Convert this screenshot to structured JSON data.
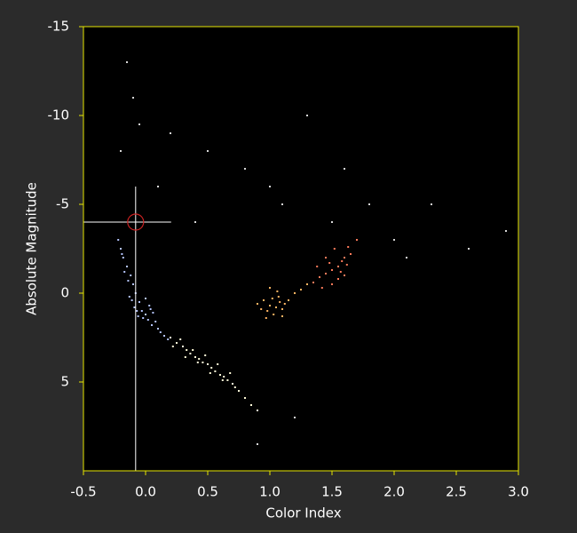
{
  "chart_data": {
    "type": "scatter",
    "x_label": "Color Index",
    "y_label": "Absolute Magnitude",
    "xlim": [
      -0.5,
      3.0
    ],
    "ylim": [
      10,
      -15
    ],
    "xticks": [
      -0.5,
      {
        "value": 0,
        "label": "0.0"
      },
      0.5,
      {
        "value": 1,
        "label": "1.0"
      },
      1.5,
      {
        "value": 2,
        "label": "2.0"
      },
      2.5,
      {
        "value": 3,
        "label": "3.0"
      }
    ],
    "yticks": [
      -15,
      -10,
      -5,
      0,
      5
    ],
    "frame_color": "#e6e600",
    "crosshair": {
      "x": -0.08,
      "y": -4,
      "color": "#ffffff",
      "marker_color": "#cc2222"
    },
    "series": [
      {
        "color": "#b4c4ff",
        "x": [
          -0.22,
          -0.2,
          -0.18,
          -0.15,
          -0.12,
          -0.1,
          -0.08,
          -0.05,
          -0.03,
          0.0,
          0.02,
          0.05,
          -0.17,
          -0.13,
          -0.09,
          -0.06,
          0.0,
          0.04,
          0.08,
          0.1,
          -0.19,
          -0.14,
          -0.11,
          -0.07,
          -0.02,
          0.03,
          0.06,
          0.12,
          0.15,
          0.18
        ],
        "values": [
          -3,
          -2.5,
          -2,
          -1.5,
          -1,
          -0.5,
          0,
          0.5,
          1,
          1.2,
          1.5,
          1.8,
          -1.2,
          0.2,
          0.8,
          1.3,
          0.3,
          0.9,
          1.6,
          2.0,
          -2.2,
          -0.7,
          0.4,
          1.0,
          1.4,
          0.7,
          1.1,
          2.2,
          2.4,
          2.6
        ]
      },
      {
        "color": "#fffbd8",
        "x": [
          0.2,
          0.25,
          0.3,
          0.33,
          0.36,
          0.4,
          0.43,
          0.46,
          0.5,
          0.53,
          0.56,
          0.6,
          0.63,
          0.66,
          0.7,
          0.75,
          0.8,
          0.85,
          0.28,
          0.38,
          0.48,
          0.58,
          0.68,
          0.22,
          0.32,
          0.42,
          0.52,
          0.62,
          0.72,
          0.9
        ],
        "values": [
          2.5,
          2.8,
          3.0,
          3.2,
          3.4,
          3.6,
          3.7,
          3.9,
          4.0,
          4.2,
          4.4,
          4.6,
          4.7,
          4.9,
          5.1,
          5.5,
          5.9,
          6.3,
          2.6,
          3.2,
          3.5,
          4.0,
          4.5,
          3.0,
          3.6,
          3.9,
          4.5,
          4.9,
          5.3,
          6.6
        ]
      },
      {
        "color": "#ffb462",
        "x": [
          0.9,
          0.95,
          1.0,
          1.02,
          1.05,
          1.08,
          1.1,
          1.12,
          0.98,
          1.03,
          1.07,
          0.93,
          1.15,
          1.2,
          1.0,
          1.06,
          0.97,
          1.1,
          1.25,
          1.3
        ],
        "values": [
          0.6,
          0.4,
          0.7,
          0.3,
          0.8,
          0.5,
          0.9,
          0.6,
          1.0,
          1.2,
          0.2,
          0.9,
          0.4,
          0.0,
          -0.3,
          -0.1,
          1.4,
          1.3,
          -0.2,
          -0.5
        ]
      },
      {
        "color": "#ff7a5a",
        "x": [
          1.35,
          1.4,
          1.45,
          1.5,
          1.55,
          1.58,
          1.6,
          1.62,
          1.65,
          1.5,
          1.55,
          1.45,
          1.38,
          1.6,
          1.7,
          1.52,
          1.42,
          1.57,
          1.63,
          1.48
        ],
        "values": [
          -0.6,
          -0.9,
          -1.1,
          -1.3,
          -1.5,
          -1.8,
          -2.0,
          -1.6,
          -2.2,
          -0.5,
          -0.8,
          -2.0,
          -1.5,
          -1.0,
          -3.0,
          -2.5,
          -0.3,
          -1.2,
          -2.6,
          -1.7
        ]
      },
      {
        "color": "#d8d8d8",
        "x": [
          -0.15,
          -0.1,
          0.2,
          0.5,
          0.8,
          1.0,
          1.3,
          1.6,
          1.8,
          2.0,
          2.3,
          2.6,
          2.9,
          -0.2,
          0.1,
          0.4,
          1.1,
          1.5,
          2.1,
          0.9,
          1.2,
          -0.05
        ],
        "values": [
          -13,
          -11,
          -9,
          -8,
          -7,
          -6,
          -10,
          -7,
          -5,
          -3,
          -5,
          -2.5,
          -3.5,
          -8,
          -6,
          -4,
          -5,
          -4,
          -2,
          8.5,
          7.0,
          -9.5
        ]
      }
    ]
  }
}
